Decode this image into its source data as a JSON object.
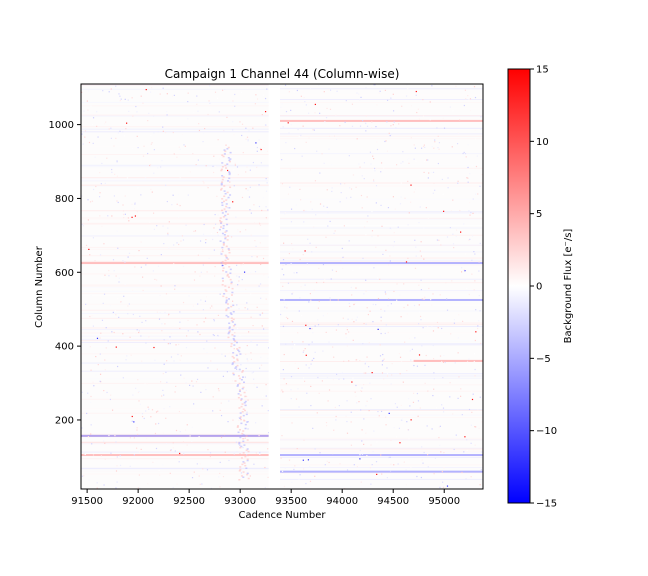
{
  "chart_data": {
    "type": "heatmap",
    "title": "Campaign 1 Channel 44 (Column-wise)",
    "xlabel": "Cadence Number",
    "ylabel": "Column Number",
    "xlim": [
      91440,
      95380
    ],
    "ylim": [
      13,
      1110
    ],
    "xticks": [
      {
        "value": 91500,
        "label": "91500"
      },
      {
        "value": 92000,
        "label": "92000"
      },
      {
        "value": 92500,
        "label": "92500"
      },
      {
        "value": 93000,
        "label": "93000"
      },
      {
        "value": 93500,
        "label": "93500"
      },
      {
        "value": 94000,
        "label": "94000"
      },
      {
        "value": 94500,
        "label": "94500"
      },
      {
        "value": 95000,
        "label": "95000"
      }
    ],
    "yticks": [
      {
        "value": 200,
        "label": "200"
      },
      {
        "value": 400,
        "label": "400"
      },
      {
        "value": 600,
        "label": "600"
      },
      {
        "value": 800,
        "label": "800"
      },
      {
        "value": 1000,
        "label": "1000"
      }
    ],
    "gap": [
      93280,
      93390
    ],
    "colorbar": {
      "label": "Background Flux [e⁻/s]",
      "range": [
        -15,
        15
      ],
      "colormap": "bwr",
      "colors": [
        "#0000ff",
        "#ffffff",
        "#ff0000"
      ],
      "ticks": [
        {
          "value": 15,
          "label": "15"
        },
        {
          "value": 10,
          "label": "10"
        },
        {
          "value": 5,
          "label": "5"
        },
        {
          "value": 0,
          "label": "0"
        },
        {
          "value": -5,
          "label": "−5"
        },
        {
          "value": -10,
          "label": "−10"
        },
        {
          "value": -15,
          "label": "−15"
        }
      ]
    },
    "features": [
      {
        "name": "red-band",
        "column": 625,
        "cadence_range": [
          91440,
          93280
        ],
        "sign": "positive"
      },
      {
        "name": "blue-band",
        "column": 625,
        "cadence_range": [
          93390,
          95380
        ],
        "sign": "negative"
      },
      {
        "name": "blue-band",
        "column": 525,
        "cadence_range": [
          93390,
          95380
        ],
        "sign": "negative"
      },
      {
        "name": "red-band",
        "column": 360,
        "cadence_range": [
          94700,
          95380
        ],
        "sign": "positive"
      },
      {
        "name": "red-band",
        "column": 157,
        "cadence_range": [
          91440,
          93280
        ],
        "sign": "positive"
      },
      {
        "name": "blue-band",
        "column": 157,
        "cadence_range": [
          91440,
          93280
        ],
        "sign": "negative"
      },
      {
        "name": "red-band",
        "column": 105,
        "cadence_range": [
          91440,
          93280
        ],
        "sign": "positive"
      },
      {
        "name": "blue-band",
        "column": 105,
        "cadence_range": [
          93390,
          95380
        ],
        "sign": "negative"
      },
      {
        "name": "blue-band",
        "column": 60,
        "cadence_range": [
          93390,
          95380
        ],
        "sign": "negative"
      },
      {
        "name": "red-band",
        "column": 1010,
        "cadence_range": [
          93390,
          95380
        ],
        "sign": "positive"
      }
    ]
  }
}
